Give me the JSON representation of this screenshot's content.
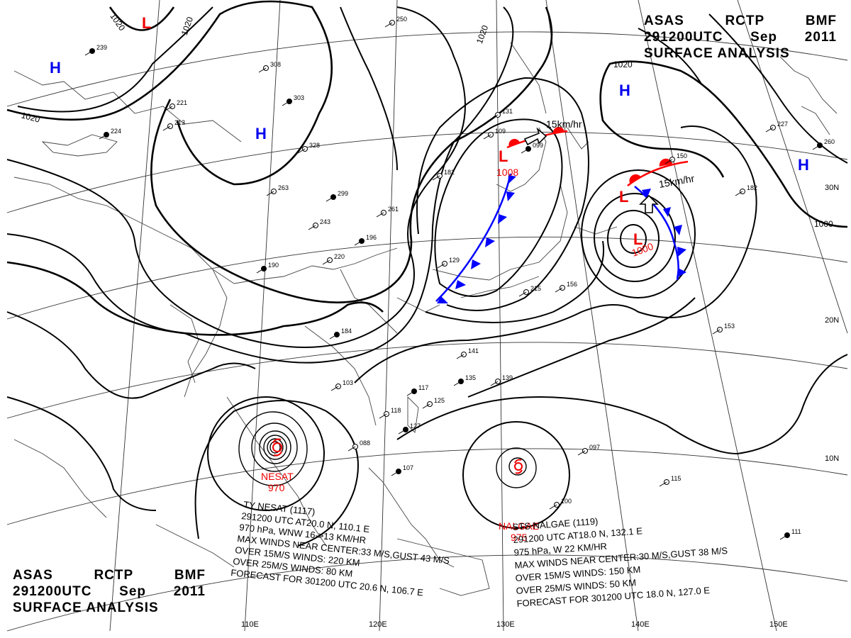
{
  "header": {
    "agency": [
      "ASAS",
      "RCTP",
      "BMF"
    ],
    "time": [
      "291200UTC",
      "Sep",
      "2011"
    ],
    "product": "SURFACE ANALYSIS"
  },
  "isobar_labels": [
    "1020",
    "1020",
    "1020",
    "1020",
    "1020",
    "1000"
  ],
  "pressure_centers": {
    "highs": [
      "H",
      "H",
      "H",
      "H"
    ],
    "lows": [
      {
        "symbol": "L",
        "value": ""
      },
      {
        "symbol": "L",
        "value": "1008"
      },
      {
        "symbol": "L",
        "value": "1000"
      },
      {
        "symbol": "L",
        "value": ""
      }
    ]
  },
  "motion_labels": [
    "15km/hr",
    "15km/hr"
  ],
  "storms": [
    {
      "name": "NESAT",
      "pressure": "970"
    },
    {
      "name": "NALGAE",
      "pressure": "975"
    }
  ],
  "bulletins": {
    "nesat": [
      "TY NESAT  (1117)",
      "291200 UTC  AT20.0 N, 110.1 E",
      "970 hPa, WNW  16->13 KM/HR",
      "MAX WINDS NEAR CENTER:33 M/S,GUST 43 M/S",
      "OVER 15M/S WINDS: 220 KM",
      "OVER 25M/S WINDS: 80 KM",
      "FORECAST FOR 301200 UTC 20.6 N, 106.7 E"
    ],
    "nalgae": [
      "STS NALGAE  (1119)",
      "291200 UTC  AT18.0 N, 132.1 E",
      "975 hPa, W  22 KM/HR",
      "MAX WINDS NEAR CENTER:30 M/S,GUST 38 M/S",
      "OVER 15M/S WINDS: 150 KM",
      "OVER 25M/S WINDS: 50 KM",
      "FORECAST FOR 301200 UTC 18.0 N, 127.0 E"
    ]
  },
  "grid_labels": {
    "lat": [
      "30N",
      "20N",
      "10N"
    ],
    "lon": [
      "110E",
      "120E",
      "130E",
      "140E",
      "150E"
    ]
  },
  "station_numbers": [
    "239",
    "250",
    "308",
    "303",
    "328",
    "263",
    "299",
    "243",
    "220",
    "196",
    "261",
    "182",
    "184",
    "129",
    "141",
    "135",
    "139",
    "103",
    "117",
    "125",
    "118",
    "127",
    "088",
    "097",
    "107",
    "109",
    "131",
    "099",
    "150",
    "227",
    "260",
    "182",
    "153",
    "111",
    "115",
    "100",
    "190",
    "156",
    "215",
    "224",
    "221",
    "213"
  ],
  "colors": {
    "isobar": "#000000",
    "grid": "#333333",
    "coast": "#444444",
    "high": "#0000ee",
    "low": "#ee0000",
    "cold_front": "#0000ff",
    "warm_front": "#ff0000"
  }
}
